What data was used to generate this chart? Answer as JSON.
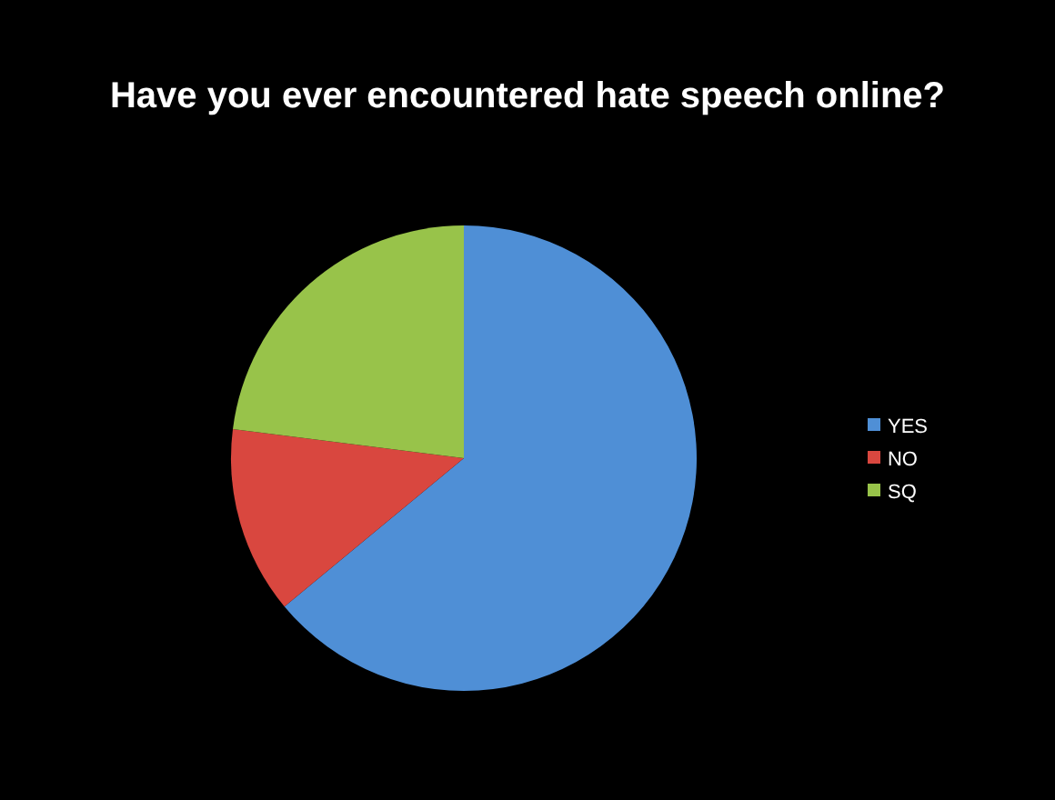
{
  "chart_data": {
    "type": "pie",
    "title": "Have you ever encountered hate speech online?",
    "categories": [
      "YES",
      "NO",
      "SQ"
    ],
    "values": [
      64,
      13,
      23
    ],
    "colors": [
      "#4f8fd6",
      "#d9473f",
      "#98c34a"
    ],
    "legend": "right"
  }
}
